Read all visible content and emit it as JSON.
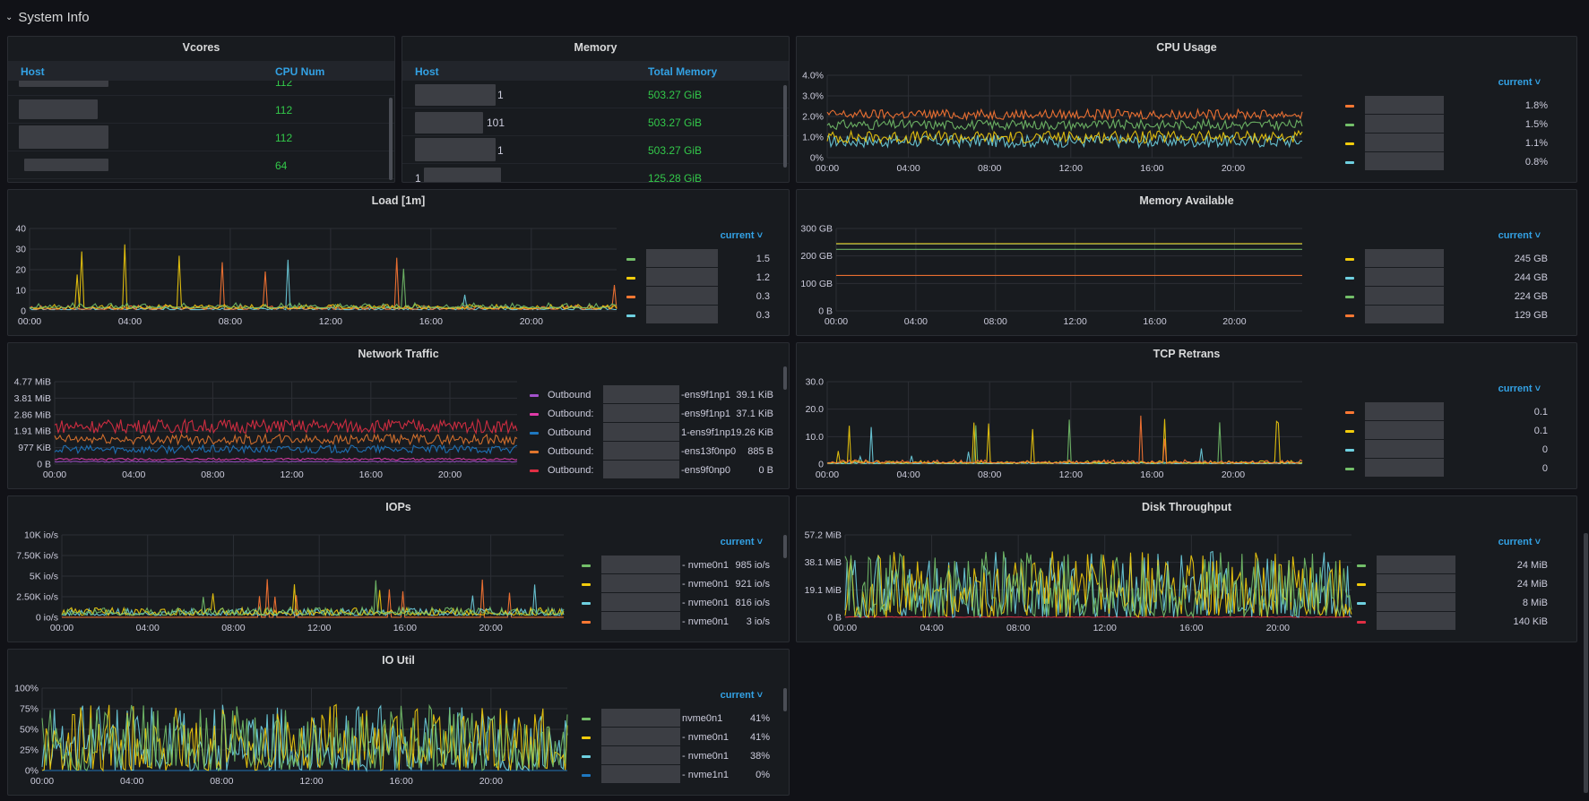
{
  "row": {
    "title": "System Info"
  },
  "vcores": {
    "title": "Vcores",
    "col_host": "Host",
    "col_cpu": "CPU Num",
    "rows": [
      {
        "v": "112"
      },
      {
        "v": "112"
      },
      {
        "v": "112"
      },
      {
        "v": "64"
      }
    ]
  },
  "memory": {
    "title": "Memory",
    "col_host": "Host",
    "col_total": "Total Memory",
    "rows": [
      {
        "h": "1",
        "v": "503.27 GiB"
      },
      {
        "h": "101",
        "v": "503.27 GiB"
      },
      {
        "h": "1",
        "v": "503.27 GiB"
      },
      {
        "h": "1",
        "v": "125.28 GiB"
      }
    ]
  },
  "colors": {
    "green": "#73bf69",
    "yellow": "#f2cc0c",
    "orange": "#ff7833",
    "cyan": "#8ab8ff",
    "teal": "#6ed0e0",
    "purple": "#a352cc",
    "pink": "#e03ba8",
    "blue": "#1f78c1",
    "red": "#e02f44",
    "brown": "#e0752d"
  },
  "panels": {
    "cpu": {
      "title": "CPU Usage",
      "legend_header": "current",
      "chart_data": {
        "type": "line",
        "x_ticks": [
          "00:00",
          "04:00",
          "08:00",
          "12:00",
          "16:00",
          "20:00"
        ],
        "y_ticks": [
          "0%",
          "1.0%",
          "2.0%",
          "3.0%",
          "4.0%"
        ],
        "ylim": [
          0,
          4
        ],
        "series": [
          {
            "color": "#ff7833",
            "current": "1.8%",
            "base": 2.1,
            "amp": 0.4
          },
          {
            "color": "#73bf69",
            "current": "1.5%",
            "base": 1.6,
            "amp": 0.4
          },
          {
            "color": "#f2cc0c",
            "current": "1.1%",
            "base": 1.0,
            "amp": 0.5
          },
          {
            "color": "#6ed0e0",
            "current": "0.8%",
            "base": 0.8,
            "amp": 0.5
          }
        ]
      }
    },
    "load": {
      "title": "Load [1m]",
      "legend_header": "current",
      "chart_data": {
        "type": "line",
        "x_ticks": [
          "00:00",
          "04:00",
          "08:00",
          "12:00",
          "16:00",
          "20:00"
        ],
        "y_ticks": [
          "0",
          "10",
          "20",
          "30",
          "40"
        ],
        "ylim": [
          0,
          40
        ],
        "series": [
          {
            "color": "#73bf69",
            "current": "1.5",
            "base": 1.5,
            "amp": 1.2
          },
          {
            "color": "#f2cc0c",
            "current": "1.2",
            "base": 1.2,
            "amp": 1.0
          },
          {
            "color": "#ff7833",
            "current": "0.3",
            "base": 0.8,
            "amp": 1.0
          },
          {
            "color": "#6ed0e0",
            "current": "0.3",
            "base": 0.6,
            "amp": 0.8
          }
        ]
      }
    },
    "memavail": {
      "title": "Memory Available",
      "legend_header": "current",
      "chart_data": {
        "type": "line",
        "x_ticks": [
          "00:00",
          "04:00",
          "08:00",
          "12:00",
          "16:00",
          "20:00"
        ],
        "y_ticks": [
          "0 B",
          "100 GB",
          "200 GB",
          "300 GB"
        ],
        "ylim": [
          0,
          300
        ],
        "series": [
          {
            "color": "#f2cc0c",
            "current": "245 GB",
            "base": 245,
            "amp": 0
          },
          {
            "color": "#6ed0e0",
            "current": "244 GB",
            "base": 244,
            "amp": 0
          },
          {
            "color": "#73bf69",
            "current": "224 GB",
            "base": 224,
            "amp": 0
          },
          {
            "color": "#ff7833",
            "current": "129 GB",
            "base": 129,
            "amp": 0
          }
        ]
      }
    },
    "net": {
      "title": "Network Traffic",
      "chart_data": {
        "type": "line",
        "x_ticks": [
          "00:00",
          "04:00",
          "08:00",
          "12:00",
          "16:00",
          "20:00"
        ],
        "y_ticks": [
          "0 B",
          "977 KiB",
          "1.91 MiB",
          "2.86 MiB",
          "3.81 MiB",
          "4.77 MiB"
        ],
        "ylim": [
          0,
          5
        ],
        "series": [
          {
            "color": "#a352cc",
            "name": "Outbound",
            "suffix": "-ens9f1np1",
            "current": "39.1 KiB",
            "base": 0.15,
            "amp": 0.05
          },
          {
            "color": "#e03ba8",
            "name": "Outbound:",
            "suffix": "-ens9f1np1",
            "current": "37.1 KiB",
            "base": 0.3,
            "amp": 0.1
          },
          {
            "color": "#1f78c1",
            "name": "Outbound",
            "suffix": "1-ens9f1np1",
            "current": "9.26 KiB",
            "base": 0.9,
            "amp": 0.4
          },
          {
            "color": "#e0752d",
            "name": "Outbound:",
            "suffix": "-ens13f0np0",
            "current": "885 B",
            "base": 1.5,
            "amp": 0.5
          },
          {
            "color": "#e02f44",
            "name": "Outbound:",
            "suffix": "-ens9f0np0",
            "current": "0 B",
            "base": 2.3,
            "amp": 0.7
          }
        ]
      }
    },
    "tcp": {
      "title": "TCP Retrans",
      "legend_header": "current",
      "chart_data": {
        "type": "line",
        "x_ticks": [
          "00:00",
          "04:00",
          "08:00",
          "12:00",
          "16:00",
          "20:00"
        ],
        "y_ticks": [
          "0",
          "10.0",
          "20.0",
          "30.0"
        ],
        "ylim": [
          0,
          30
        ],
        "series": [
          {
            "color": "#ff7833",
            "current": "0.1",
            "base": 0.4,
            "amp": 0.6
          },
          {
            "color": "#f2cc0c",
            "current": "0.1",
            "base": 0.3,
            "amp": 0.5
          },
          {
            "color": "#6ed0e0",
            "current": "0",
            "base": 0.2,
            "amp": 0.3
          },
          {
            "color": "#73bf69",
            "current": "0",
            "base": 0.2,
            "amp": 0.3
          }
        ]
      }
    },
    "iops": {
      "title": "IOPs",
      "legend_header": "current",
      "chart_data": {
        "type": "line",
        "x_ticks": [
          "00:00",
          "04:00",
          "08:00",
          "12:00",
          "16:00",
          "20:00"
        ],
        "y_ticks": [
          "0 io/s",
          "2.50K io/s",
          "5K io/s",
          "7.50K io/s",
          "10K io/s"
        ],
        "ylim": [
          0,
          10000
        ],
        "series": [
          {
            "color": "#73bf69",
            "suffix": "- nvme0n1",
            "current": "985 io/s",
            "base": 700,
            "amp": 700
          },
          {
            "color": "#f2cc0c",
            "suffix": "- nvme0n1",
            "current": "921 io/s",
            "base": 650,
            "amp": 650
          },
          {
            "color": "#6ed0e0",
            "suffix": "- nvme0n1",
            "current": "816 io/s",
            "base": 600,
            "amp": 600
          },
          {
            "color": "#ff7833",
            "suffix": "- nvme0n1",
            "current": "3 io/s",
            "base": 10,
            "amp": 10
          }
        ]
      }
    },
    "disk": {
      "title": "Disk Throughput",
      "legend_header": "current",
      "chart_data": {
        "type": "line",
        "x_ticks": [
          "00:00",
          "04:00",
          "08:00",
          "12:00",
          "16:00",
          "20:00"
        ],
        "y_ticks": [
          "0 B",
          "19.1 MiB",
          "38.1 MiB",
          "57.2 MiB"
        ],
        "ylim": [
          0,
          57.2
        ],
        "series": [
          {
            "color": "#73bf69",
            "current": "24 MiB",
            "base": 8,
            "amp": 28
          },
          {
            "color": "#f2cc0c",
            "current": "24 MiB",
            "base": 8,
            "amp": 28
          },
          {
            "color": "#6ed0e0",
            "current": "8 MiB",
            "base": 6,
            "amp": 26
          },
          {
            "color": "#e02f44",
            "current": "140 KiB",
            "base": 0.1,
            "amp": 0.1
          }
        ]
      }
    },
    "ioutil": {
      "title": "IO Util",
      "legend_header": "current",
      "chart_data": {
        "type": "line",
        "x_ticks": [
          "00:00",
          "04:00",
          "08:00",
          "12:00",
          "16:00",
          "20:00"
        ],
        "y_ticks": [
          "0%",
          "25%",
          "50%",
          "75%",
          "100%"
        ],
        "ylim": [
          0,
          100
        ],
        "series": [
          {
            "color": "#73bf69",
            "suffix": "nvme0n1",
            "current": "41%",
            "base": 20,
            "amp": 45
          },
          {
            "color": "#f2cc0c",
            "suffix": "- nvme0n1",
            "current": "41%",
            "base": 20,
            "amp": 45
          },
          {
            "color": "#6ed0e0",
            "suffix": "- nvme0n1",
            "current": "38%",
            "base": 18,
            "amp": 42
          },
          {
            "color": "#1f78c1",
            "suffix": "- nvme1n1",
            "current": "0%",
            "base": 0,
            "amp": 0
          }
        ]
      }
    }
  }
}
